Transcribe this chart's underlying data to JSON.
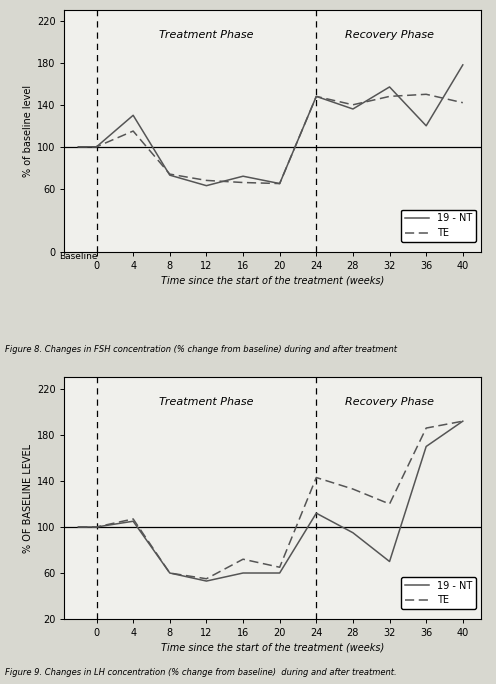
{
  "fig1": {
    "ylabel": "% of baseline level",
    "xlabel": "Time since the start of the treatment (weeks)",
    "treatment_phase_label": "Treatment Phase",
    "recovery_phase_label": "Recovery Phase",
    "ylim": [
      0,
      230
    ],
    "yticks": [
      0,
      60,
      100,
      140,
      180,
      220
    ],
    "xlim": [
      -3.5,
      42
    ],
    "x_ticks": [
      0,
      4,
      8,
      12,
      16,
      20,
      24,
      28,
      32,
      36,
      40
    ],
    "vline1_x": 0,
    "vline2_x": 24,
    "hline_y": 100,
    "nt_x": [
      -2,
      0,
      4,
      8,
      12,
      16,
      20,
      24,
      28,
      32,
      36,
      40
    ],
    "nt_y": [
      100,
      100,
      130,
      73,
      63,
      72,
      65,
      148,
      136,
      157,
      120,
      178
    ],
    "te_x": [
      -2,
      0,
      4,
      8,
      12,
      16,
      20,
      24,
      28,
      32,
      36,
      40
    ],
    "te_y": [
      100,
      100,
      115,
      74,
      68,
      66,
      65,
      148,
      140,
      148,
      150,
      142
    ],
    "caption": "Figure 8. Changes in FSH concentration (% change from baseline) during and after treatment"
  },
  "fig2": {
    "ylabel": "% OF BASELINE LEVEL",
    "xlabel": "Time since the start of the treatment (weeks)",
    "treatment_phase_label": "Treatment Phase",
    "recovery_phase_label": "Recovery Phase",
    "ylim": [
      20,
      230
    ],
    "yticks": [
      20,
      60,
      100,
      140,
      180,
      220
    ],
    "xlim": [
      -3.5,
      42
    ],
    "x_ticks": [
      0,
      4,
      8,
      12,
      16,
      20,
      24,
      28,
      32,
      36,
      40
    ],
    "vline1_x": 0,
    "vline2_x": 24,
    "hline_y": 100,
    "nt_x": [
      -2,
      0,
      4,
      8,
      12,
      16,
      20,
      24,
      28,
      32,
      36,
      40
    ],
    "nt_y": [
      100,
      100,
      105,
      60,
      53,
      60,
      60,
      112,
      95,
      70,
      170,
      192
    ],
    "te_x": [
      -2,
      0,
      4,
      8,
      12,
      16,
      20,
      24,
      28,
      32,
      36,
      40
    ],
    "te_y": [
      100,
      100,
      107,
      60,
      55,
      72,
      65,
      143,
      133,
      120,
      186,
      192
    ],
    "caption": "Figure 9. Changes in LH concentration (% change from baseline)  during and after treatment."
  },
  "line_color": "#555555",
  "nt_label": "19 - NT",
  "te_label": "TE",
  "bg_color": "#d8d8d0",
  "plot_bg": "#f0f0ec"
}
